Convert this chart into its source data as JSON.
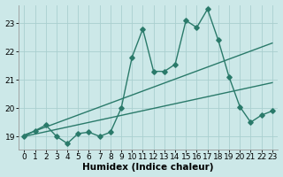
{
  "xlabel": "Humidex (Indice chaleur)",
  "bg_color": "#cce8e8",
  "grid_color": "#aacfcf",
  "line_color": "#2a7a6a",
  "xlim": [
    -0.5,
    23.5
  ],
  "ylim": [
    18.55,
    23.65
  ],
  "yticks": [
    19,
    20,
    21,
    22,
    23
  ],
  "xticks": [
    0,
    1,
    2,
    3,
    4,
    5,
    6,
    7,
    8,
    9,
    10,
    11,
    12,
    13,
    14,
    15,
    16,
    17,
    18,
    19,
    20,
    21,
    22,
    23
  ],
  "line1_x": [
    0,
    1,
    2,
    3,
    4,
    5,
    6,
    7,
    8,
    9,
    10,
    11,
    12,
    13,
    14,
    15,
    16,
    17,
    18,
    19,
    20,
    21,
    22,
    23
  ],
  "line1_y": [
    19.0,
    19.2,
    19.4,
    19.0,
    18.75,
    19.1,
    19.15,
    19.0,
    19.15,
    20.0,
    21.8,
    22.8,
    21.3,
    21.3,
    21.55,
    23.1,
    22.85,
    23.5,
    22.4,
    21.1,
    20.05,
    19.5,
    19.75,
    19.9
  ],
  "line2_x": [
    0,
    23
  ],
  "line2_y": [
    19.05,
    22.3
  ],
  "line3_x": [
    0,
    23
  ],
  "line3_y": [
    19.0,
    20.9
  ],
  "marker": "D",
  "markersize": 2.8,
  "linewidth": 1.0,
  "font_size": 7.5,
  "tick_font_size": 6.5
}
